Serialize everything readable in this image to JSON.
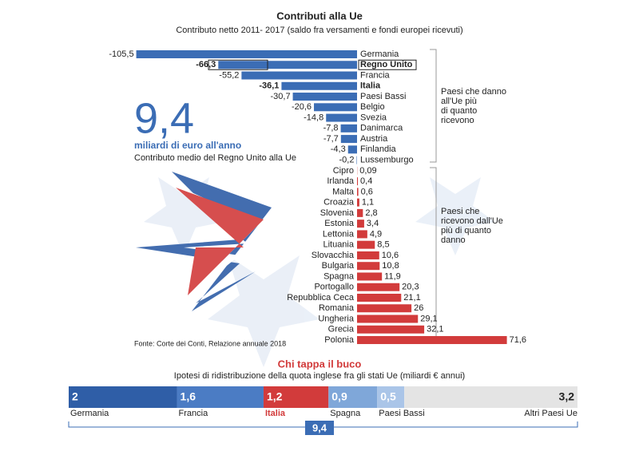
{
  "chart_data": [
    {
      "type": "bar",
      "title": "Contributi alla Ue",
      "subtitle": "Contributo netto 2011- 2017 (saldo fra versamenti e fondi europei ricevuti)",
      "categories": [
        "Germania",
        "Regno Unito",
        "Francia",
        "Italia",
        "Paesi Bassi",
        "Belgio",
        "Svezia",
        "Danimarca",
        "Austria",
        "Finlandia",
        "Lussemburgo",
        "Cipro",
        "Irlanda",
        "Malta",
        "Croazia",
        "Slovenia",
        "Estonia",
        "Lettonia",
        "Lituania",
        "Slovacchia",
        "Bulgaria",
        "Spagna",
        "Portogallo",
        "Repubblica Ceca",
        "Romania",
        "Ungheria",
        "Grecia",
        "Polonia"
      ],
      "values": [
        -105.5,
        -66.3,
        -55.2,
        -36.1,
        -30.7,
        -20.6,
        -14.8,
        -7.8,
        -7.7,
        -4.3,
        -0.2,
        0.09,
        0.4,
        0.6,
        1.1,
        2.8,
        3.4,
        4.9,
        8.5,
        10.6,
        10.8,
        11.9,
        20.3,
        21.1,
        26,
        29.1,
        32.1,
        71.6
      ],
      "value_labels": [
        "-105,5",
        "-66,3",
        "-55,2",
        "-36,1",
        "-30,7",
        "-20,6",
        "-14,8",
        "-7,8",
        "-7,7",
        "-4,3",
        "-0,2",
        "0,09",
        "0,4",
        "0,6",
        "1,1",
        "2,8",
        "3,4",
        "4,9",
        "8,5",
        "10,6",
        "10,8",
        "11,9",
        "20,3",
        "21,1",
        "26",
        "29,1",
        "32,1",
        "71,6"
      ],
      "colors": {
        "negative": "#3b6db5",
        "positive": "#d23b3b"
      },
      "big_number": "9,4",
      "big_number_caption": "miliardi di euro all'anno",
      "big_number_note": "Contributo medio del Regno Unito alla Ue",
      "group_give": [
        "Paesi che danno",
        "all'Ue più",
        "di quanto",
        "ricevono"
      ],
      "group_receive": [
        "Paesi che",
        "ricevono dall'Ue",
        "più di quanto",
        "danno"
      ],
      "source": "Fonte: Corte dei Conti, Relazione annuale 2018"
    },
    {
      "type": "stacked_bar",
      "title": "Chi tappa il buco",
      "subtitle": "Ipotesi di ridistribuzione della quota inglese fra gli stati Ue (miliardi € annui)",
      "categories": [
        "Germania",
        "Francia",
        "Italia",
        "Spagna",
        "Paesi Bassi",
        "Altri Paesi Ue"
      ],
      "values": [
        2,
        1.6,
        1.2,
        0.9,
        0.5,
        3.2
      ],
      "value_labels": [
        "2",
        "1,6",
        "1,2",
        "0,9",
        "0,5",
        "3,2"
      ],
      "colors": [
        "#2f5ea7",
        "#4b7cc4",
        "#d23b3b",
        "#7fa7d9",
        "#aac5e8",
        "#e4e4e4"
      ],
      "total": 9.4,
      "total_label": "9,4"
    }
  ]
}
